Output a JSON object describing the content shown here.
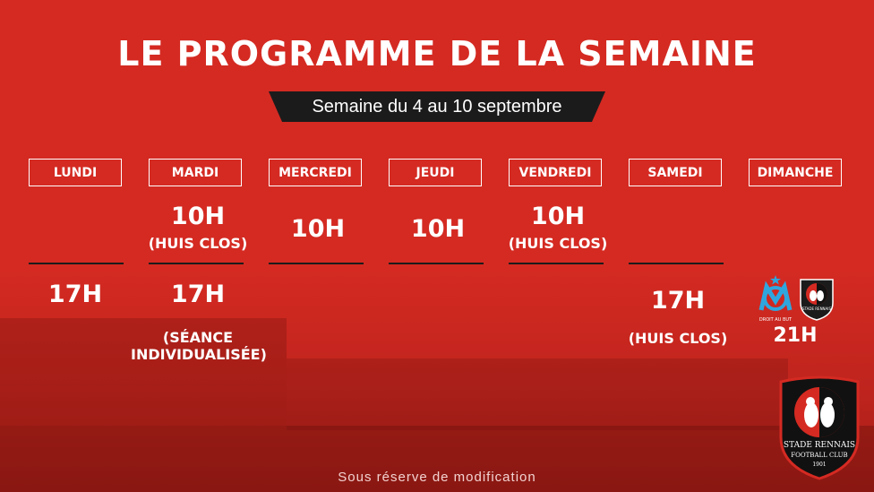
{
  "title": "LE PROGRAMME DE LA SEMAINE",
  "subtitle": "Semaine du 4 au 10 septembre",
  "days": [
    "LUNDI",
    "MARDI",
    "MERCREDI",
    "JEUDI",
    "VENDREDI",
    "SAMEDI",
    "DIMANCHE"
  ],
  "morning": {
    "mardi_time": "10H",
    "mardi_note": "(HUIS CLOS)",
    "mercredi_time": "10H",
    "jeudi_time": "10H",
    "vendredi_time": "10H",
    "vendredi_note": "(HUIS CLOS)"
  },
  "afternoon": {
    "lundi_time": "17H",
    "mardi_time": "17H",
    "mardi_note_line1": "(SÉANCE",
    "mardi_note_line2": "INDIVIDUALISÉE)",
    "samedi_time": "17H",
    "samedi_note": "(HUIS CLOS)",
    "dimanche_time": "21H"
  },
  "match_logos": {
    "om_motto": "DROIT AU BUT",
    "srfc_small": "STADE RENNAIS"
  },
  "crest": {
    "name": "STADE RENNAIS",
    "sub": "FOOTBALL CLUB",
    "year": "1901"
  },
  "footer": "Sous réserve de modification",
  "colors": {
    "background": "#d42a22",
    "banner": "#1b1b1b",
    "text": "#ffffff",
    "om_blue": "#2fa6de"
  }
}
